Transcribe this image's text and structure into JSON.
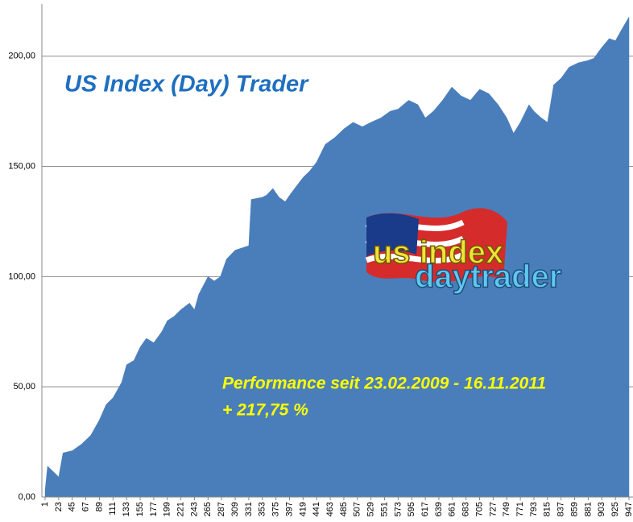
{
  "chart_data": {
    "type": "area",
    "title": "US Index (Day) Trader",
    "annotations": [
      "Performance  seit  23.02.2009 - 16.11.2011",
      "+ 217,75  %"
    ],
    "logo": [
      "us index",
      "daytrader"
    ],
    "color": "#4a7ebb",
    "grid": true,
    "x": [
      1,
      5,
      20,
      23,
      30,
      45,
      60,
      75,
      89,
      100,
      111,
      125,
      133,
      145,
      155,
      165,
      177,
      190,
      199,
      210,
      221,
      235,
      243,
      250,
      265,
      275,
      285,
      295,
      309,
      320,
      331,
      335,
      353,
      360,
      370,
      380,
      390,
      400,
      419,
      430,
      441,
      455,
      470,
      485,
      500,
      515,
      529,
      545,
      560,
      573,
      590,
      605,
      617,
      630,
      645,
      660,
      675,
      690,
      705,
      720,
      735,
      749,
      760,
      771,
      785,
      793,
      805,
      815,
      825,
      837,
      850,
      865,
      880,
      890,
      903,
      915,
      925,
      935,
      947
    ],
    "values": [
      3,
      14,
      10,
      9,
      20,
      21,
      24,
      28,
      35,
      42,
      45,
      52,
      60,
      62,
      68,
      72,
      70,
      75,
      80,
      82,
      85,
      88,
      85,
      92,
      100,
      98,
      100,
      108,
      112,
      113,
      114,
      135,
      136,
      137,
      140,
      136,
      134,
      138,
      145,
      148,
      152,
      160,
      163,
      167,
      170,
      168,
      170,
      172,
      175,
      176,
      180,
      178,
      172,
      175,
      180,
      186,
      182,
      180,
      185,
      183,
      178,
      172,
      165,
      170,
      178,
      175,
      172,
      170,
      187,
      190,
      195,
      197,
      198,
      199,
      204,
      208,
      207,
      212,
      217.75
    ],
    "xlim": [
      1,
      947
    ],
    "xticks": [
      1,
      23,
      45,
      67,
      89,
      111,
      133,
      155,
      177,
      199,
      221,
      243,
      265,
      287,
      309,
      331,
      353,
      375,
      397,
      419,
      441,
      463,
      485,
      507,
      529,
      551,
      573,
      595,
      617,
      639,
      661,
      683,
      705,
      727,
      749,
      771,
      793,
      815,
      837,
      859,
      881,
      903,
      925,
      947
    ],
    "ylim": [
      0,
      220
    ],
    "yticks": [
      {
        "value": 0,
        "label": "0,00"
      },
      {
        "value": 50,
        "label": "50,00"
      },
      {
        "value": 100,
        "label": "100,00"
      },
      {
        "value": 150,
        "label": "150,00"
      },
      {
        "value": 200,
        "label": "200,00"
      }
    ]
  }
}
